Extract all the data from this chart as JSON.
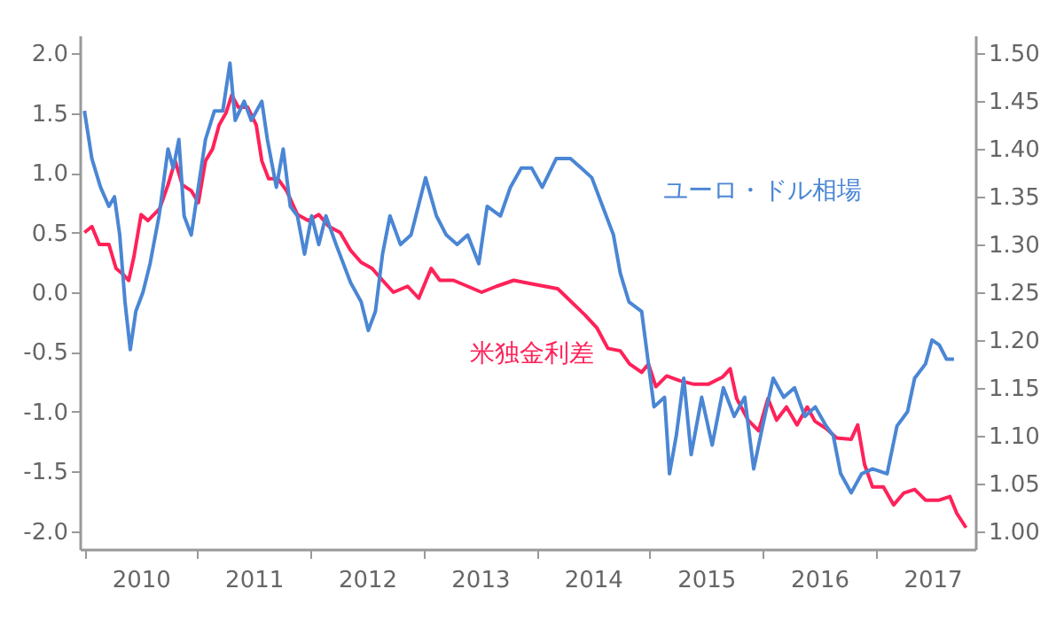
{
  "chart_data": {
    "type": "line",
    "xlim": [
      "2009-12-17",
      "2017-11-18"
    ],
    "xticks": [
      {
        "value": "2010-01-01",
        "label": null
      },
      {
        "value": "2010-07-02",
        "label": "2010"
      },
      {
        "value": "2011-01-01",
        "label": null
      },
      {
        "value": "2011-07-02",
        "label": "2011"
      },
      {
        "value": "2012-01-01",
        "label": null
      },
      {
        "value": "2012-07-02",
        "label": "2012"
      },
      {
        "value": "2013-01-01",
        "label": null
      },
      {
        "value": "2013-07-02",
        "label": "2013"
      },
      {
        "value": "2014-01-01",
        "label": null
      },
      {
        "value": "2014-07-02",
        "label": "2014"
      },
      {
        "value": "2015-01-01",
        "label": null
      },
      {
        "value": "2015-07-02",
        "label": "2015"
      },
      {
        "value": "2016-01-01",
        "label": null
      },
      {
        "value": "2016-07-02",
        "label": "2016"
      },
      {
        "value": "2017-01-01",
        "label": null
      },
      {
        "value": "2017-07-02",
        "label": "2017"
      }
    ],
    "ylim": [
      -2.15,
      2.15
    ],
    "yticks": [
      {
        "value": -2,
        "label": "-2.0"
      },
      {
        "value": -1.5,
        "label": "-1.5"
      },
      {
        "value": -1,
        "label": "-1.0"
      },
      {
        "value": -0.5,
        "label": "-0.5"
      },
      {
        "value": 0,
        "label": "0.0"
      },
      {
        "value": 0.5,
        "label": "0.5"
      },
      {
        "value": 1,
        "label": "1.0"
      },
      {
        "value": 1.5,
        "label": "1.5"
      },
      {
        "value": 2,
        "label": "2.0"
      }
    ],
    "y2lim": [
      0.981,
      1.519
    ],
    "y2ticks": [
      {
        "value": 1,
        "label": "1.00"
      },
      {
        "value": 1.05,
        "label": "1.05"
      },
      {
        "value": 1.1,
        "label": "1.10"
      },
      {
        "value": 1.15,
        "label": "1.15"
      },
      {
        "value": 1.2,
        "label": "1.20"
      },
      {
        "value": 1.25,
        "label": "1.25"
      },
      {
        "value": 1.3,
        "label": "1.30"
      },
      {
        "value": 1.35,
        "label": "1.35"
      },
      {
        "value": 1.4,
        "label": "1.40"
      },
      {
        "value": 1.45,
        "label": "1.45"
      },
      {
        "value": 1.5,
        "label": "1.50"
      }
    ],
    "grid": false,
    "marker": "none",
    "line_style": "solid",
    "series": [
      {
        "name": "ユーロ・ドル相場",
        "color": "#4a86d4",
        "axis": "y2",
        "x": [
          "2010-01-01",
          "2010-01-25",
          "2010-02-22",
          "2010-03-21",
          "2010-04-08",
          "2010-04-25",
          "2010-05-12",
          "2010-05-29",
          "2010-06-16",
          "2010-07-09",
          "2010-08-01",
          "2010-08-30",
          "2010-09-28",
          "2010-10-15",
          "2010-11-02",
          "2010-11-19",
          "2010-12-12",
          "2011-01-04",
          "2011-01-27",
          "2011-02-25",
          "2011-03-24",
          "2011-04-16",
          "2011-05-03",
          "2011-06-01",
          "2011-06-24",
          "2011-07-28",
          "2011-08-15",
          "2011-09-13",
          "2011-10-05",
          "2011-10-28",
          "2011-11-20",
          "2011-12-13",
          "2012-01-05",
          "2012-01-28",
          "2012-02-20",
          "2012-03-24",
          "2012-05-10",
          "2012-06-13",
          "2012-07-06",
          "2012-07-29",
          "2012-08-21",
          "2012-09-14",
          "2012-10-18",
          "2012-11-21",
          "2013-01-07",
          "2013-02-11",
          "2013-03-15",
          "2013-04-19",
          "2013-05-23",
          "2013-06-28",
          "2013-07-25",
          "2013-09-06",
          "2013-10-08",
          "2013-11-12",
          "2013-12-16",
          "2014-01-19",
          "2014-03-05",
          "2014-04-20",
          "2014-05-25",
          "2014-06-28",
          "2014-08-02",
          "2014-09-06",
          "2014-09-28",
          "2014-10-26",
          "2014-12-06",
          "2015-01-15",
          "2015-02-18",
          "2015-03-06",
          "2015-03-28",
          "2015-04-21",
          "2015-05-15",
          "2015-06-18",
          "2015-07-22",
          "2015-08-27",
          "2015-10-01",
          "2015-11-04",
          "2015-12-03",
          "2016-01-01",
          "2016-02-04",
          "2016-03-09",
          "2016-04-13",
          "2016-05-16",
          "2016-06-19",
          "2016-07-24",
          "2016-08-16",
          "2016-09-09",
          "2016-10-13",
          "2016-11-16",
          "2016-12-21",
          "2017-02-06",
          "2017-03-10",
          "2017-04-13",
          "2017-05-06",
          "2017-06-10",
          "2017-07-01",
          "2017-07-24",
          "2017-08-17",
          "2017-09-10"
        ],
        "values": [
          1.44,
          1.39,
          1.36,
          1.34,
          1.35,
          1.31,
          1.24,
          1.19,
          1.23,
          1.25,
          1.28,
          1.33,
          1.4,
          1.38,
          1.41,
          1.33,
          1.31,
          1.36,
          1.41,
          1.44,
          1.44,
          1.49,
          1.43,
          1.45,
          1.43,
          1.45,
          1.41,
          1.36,
          1.4,
          1.34,
          1.33,
          1.29,
          1.33,
          1.3,
          1.33,
          1.3,
          1.26,
          1.24,
          1.21,
          1.23,
          1.29,
          1.33,
          1.3,
          1.31,
          1.37,
          1.33,
          1.31,
          1.3,
          1.31,
          1.28,
          1.34,
          1.33,
          1.36,
          1.38,
          1.38,
          1.36,
          1.39,
          1.39,
          1.38,
          1.37,
          1.34,
          1.31,
          1.27,
          1.24,
          1.23,
          1.13,
          1.14,
          1.06,
          1.1,
          1.16,
          1.08,
          1.14,
          1.09,
          1.15,
          1.12,
          1.14,
          1.065,
          1.11,
          1.16,
          1.14,
          1.15,
          1.12,
          1.13,
          1.11,
          1.1,
          1.06,
          1.04,
          1.06,
          1.065,
          1.06,
          1.11,
          1.125,
          1.16,
          1.175,
          1.2,
          1.195,
          1.18,
          1.18
        ]
      },
      {
        "name": "米独金利差",
        "color": "#ff2259",
        "x": [
          "2010-01-01",
          "2010-01-25",
          "2010-02-18",
          "2010-03-21",
          "2010-04-13",
          "2010-05-06",
          "2010-05-24",
          "2010-06-10",
          "2010-07-03",
          "2010-07-25",
          "2010-09-01",
          "2010-09-28",
          "2010-10-21",
          "2010-11-13",
          "2010-12-12",
          "2011-01-04",
          "2011-01-27",
          "2011-02-19",
          "2011-03-12",
          "2011-04-03",
          "2011-04-22",
          "2011-05-13",
          "2011-06-12",
          "2011-07-10",
          "2011-07-28",
          "2011-08-19",
          "2011-09-18",
          "2011-10-16",
          "2011-11-20",
          "2011-12-25",
          "2012-01-28",
          "2012-03-01",
          "2012-04-06",
          "2012-05-10",
          "2012-06-13",
          "2012-07-18",
          "2012-08-21",
          "2012-09-25",
          "2012-11-10",
          "2012-12-16",
          "2013-01-25",
          "2013-02-22",
          "2013-04-07",
          "2013-05-23",
          "2013-07-07",
          "2013-08-24",
          "2013-10-19",
          "2013-12-16",
          "2014-03-10",
          "2014-06-06",
          "2014-07-15",
          "2014-08-19",
          "2014-09-28",
          "2014-10-28",
          "2014-12-06",
          "2014-12-28",
          "2015-01-21",
          "2015-02-25",
          "2015-04-09",
          "2015-05-24",
          "2015-07-09",
          "2015-08-24",
          "2015-09-18",
          "2015-10-09",
          "2015-11-15",
          "2015-12-19",
          "2016-01-18",
          "2016-02-15",
          "2016-03-18",
          "2016-04-21",
          "2016-05-24",
          "2016-06-18",
          "2016-07-24",
          "2016-08-27",
          "2016-10-13",
          "2016-11-03",
          "2016-11-25",
          "2016-12-21",
          "2017-01-25",
          "2017-02-27",
          "2017-04-01",
          "2017-05-06",
          "2017-06-10",
          "2017-07-24",
          "2017-08-28",
          "2017-09-19",
          "2017-10-19"
        ],
        "values": [
          0.5,
          0.55,
          0.4,
          0.4,
          0.2,
          0.15,
          0.1,
          0.3,
          0.65,
          0.6,
          0.7,
          0.9,
          1.1,
          0.9,
          0.85,
          0.75,
          1.1,
          1.2,
          1.4,
          1.5,
          1.65,
          1.55,
          1.55,
          1.4,
          1.1,
          0.95,
          0.95,
          0.85,
          0.65,
          0.6,
          0.65,
          0.55,
          0.5,
          0.35,
          0.25,
          0.2,
          0.1,
          0.0,
          0.05,
          -0.05,
          0.2,
          0.1,
          0.1,
          0.05,
          0.0,
          0.05,
          0.1,
          0.07,
          0.03,
          -0.19,
          -0.3,
          -0.47,
          -0.49,
          -0.6,
          -0.67,
          -0.6,
          -0.79,
          -0.7,
          -0.74,
          -0.77,
          -0.77,
          -0.71,
          -0.64,
          -0.89,
          -1.07,
          -1.16,
          -0.89,
          -1.07,
          -0.96,
          -1.11,
          -0.96,
          -1.08,
          -1.14,
          -1.22,
          -1.23,
          -1.11,
          -1.44,
          -1.63,
          -1.63,
          -1.78,
          -1.68,
          -1.65,
          -1.74,
          -1.74,
          -1.71,
          -1.85,
          -1.97
        ]
      }
    ]
  }
}
